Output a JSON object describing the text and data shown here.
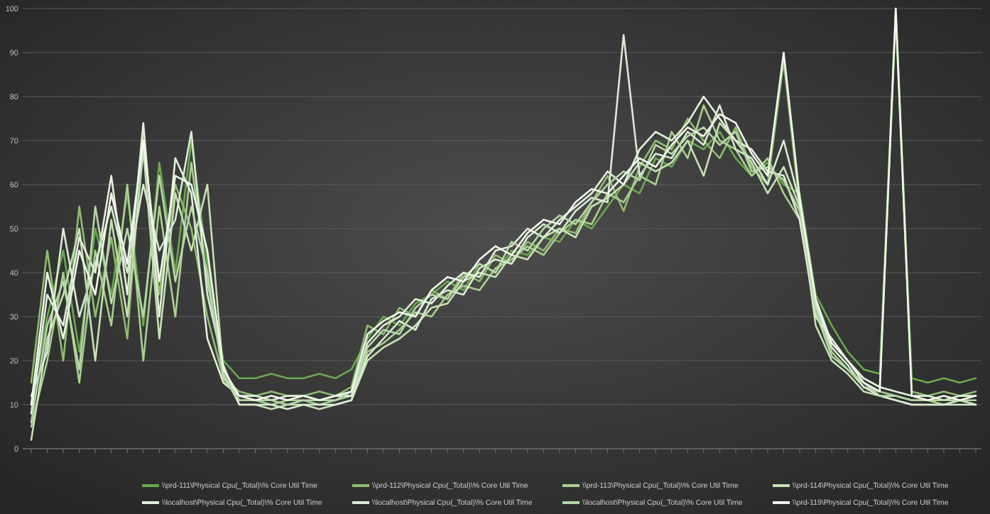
{
  "chart_data": {
    "type": "line",
    "categories": [
      null,
      null,
      null,
      null,
      null,
      null,
      null,
      null,
      null,
      null,
      null,
      null,
      null,
      null,
      null,
      null,
      null,
      null,
      null,
      null,
      null,
      null,
      null,
      null,
      null,
      null,
      null,
      null,
      null,
      null,
      null,
      null,
      null,
      null,
      null,
      null,
      null,
      null,
      null,
      null,
      null,
      null,
      null,
      null,
      null,
      null,
      null,
      null,
      null,
      null,
      null,
      null,
      null,
      null,
      null,
      null,
      null,
      null,
      null,
      null
    ],
    "ylim": [
      0,
      100
    ],
    "yticks": [
      0,
      10,
      20,
      30,
      40,
      50,
      60,
      70,
      80,
      90,
      100
    ],
    "grid": "y",
    "legend": "bottom",
    "line_style": "solid",
    "series": [
      {
        "name": "\\\\prd-111\\Physical Cpu(_Total)\\% Core Util Time",
        "color": "#6aa84f",
        "values": [
          10,
          30,
          45,
          22,
          50,
          35,
          58,
          28,
          65,
          40,
          70,
          42,
          20,
          16,
          16,
          17,
          16,
          16,
          17,
          16,
          18,
          25,
          30,
          28,
          33,
          35,
          38,
          36,
          42,
          40,
          45,
          44,
          48,
          47,
          52,
          50,
          55,
          60,
          58,
          66,
          64,
          70,
          68,
          72,
          66,
          62,
          65,
          60,
          58,
          35,
          28,
          22,
          18,
          17,
          100,
          16,
          15,
          16,
          15,
          16
        ]
      },
      {
        "name": "\\\\prd-112\\Physical Cpu(_Total)\\% Core Util Time",
        "color": "#8fbc6e",
        "values": [
          15,
          45,
          20,
          55,
          30,
          48,
          25,
          72,
          35,
          60,
          50,
          30,
          16,
          13,
          12,
          13,
          12,
          12,
          13,
          12,
          14,
          28,
          26,
          32,
          30,
          36,
          34,
          40,
          38,
          44,
          42,
          47,
          45,
          50,
          49,
          56,
          62,
          54,
          64,
          70,
          68,
          75,
          70,
          66,
          73,
          64,
          60,
          88,
          55,
          30,
          24,
          20,
          16,
          14,
          98,
          13,
          12,
          13,
          12,
          13
        ]
      },
      {
        "name": "\\\\prd-113\\Physical Cpu(_Total)\\% Core Util Time",
        "color": "#a9d08e",
        "values": [
          5,
          20,
          40,
          15,
          45,
          28,
          60,
          20,
          55,
          30,
          65,
          38,
          18,
          11,
          11,
          10,
          11,
          11,
          10,
          11,
          12,
          22,
          24,
          27,
          31,
          30,
          35,
          37,
          36,
          41,
          43,
          46,
          44,
          49,
          52,
          51,
          58,
          56,
          62,
          60,
          72,
          66,
          78,
          70,
          68,
          62,
          66,
          58,
          52,
          32,
          22,
          18,
          14,
          13,
          12,
          11,
          11,
          10,
          11,
          10
        ]
      },
      {
        "name": "\\\\prd-114\\Physical Cpu(_Total)\\% Core Util Time",
        "color": "#c6e0b4",
        "values": [
          2,
          25,
          35,
          50,
          20,
          52,
          30,
          68,
          25,
          58,
          45,
          60,
          17,
          10,
          10,
          9,
          10,
          10,
          9,
          10,
          11,
          20,
          23,
          25,
          28,
          32,
          33,
          38,
          40,
          39,
          44,
          43,
          48,
          50,
          48,
          55,
          57,
          60,
          65,
          63,
          65,
          70,
          62,
          74,
          70,
          65,
          58,
          64,
          55,
          28,
          20,
          17,
          13,
          12,
          11,
          10,
          10,
          10,
          11,
          10
        ]
      },
      {
        "name": "\\\\localhost\\Physical Cpu(_Total)\\% Core Util Time",
        "color": "#e2efda",
        "values": [
          8,
          35,
          28,
          48,
          40,
          62,
          35,
          74,
          30,
          66,
          58,
          25,
          15,
          12,
          12,
          11,
          12,
          12,
          11,
          12,
          12,
          24,
          28,
          30,
          34,
          33,
          37,
          40,
          39,
          45,
          46,
          50,
          48,
          52,
          55,
          58,
          63,
          60,
          68,
          72,
          70,
          74,
          80,
          75,
          70,
          68,
          63,
          62,
          52,
          30,
          25,
          20,
          16,
          14,
          13,
          12,
          12,
          11,
          12,
          12
        ]
      },
      {
        "name": "\\\\localhost\\Physical Cpu(_Total)\\% Core Util Time",
        "color": "#d9ead3",
        "values": [
          12,
          22,
          50,
          30,
          42,
          55,
          40,
          60,
          45,
          52,
          72,
          35,
          19,
          10,
          10,
          10,
          9,
          10,
          10,
          10,
          11,
          21,
          25,
          29,
          27,
          34,
          36,
          35,
          41,
          43,
          42,
          48,
          51,
          49,
          54,
          57,
          56,
          94,
          62,
          67,
          66,
          72,
          69,
          78,
          68,
          66,
          60,
          70,
          56,
          33,
          23,
          19,
          14,
          12,
          11,
          10,
          10,
          10,
          10,
          10
        ]
      },
      {
        "name": "\\\\localhost\\Physical Cpu(_Total)\\% Core Util Time",
        "color": "#b6d7a8",
        "values": [
          6,
          28,
          38,
          18,
          55,
          33,
          50,
          30,
          62,
          38,
          55,
          40,
          16,
          11,
          11,
          11,
          10,
          11,
          11,
          11,
          13,
          23,
          27,
          26,
          32,
          35,
          34,
          39,
          42,
          40,
          47,
          45,
          50,
          53,
          51,
          56,
          60,
          63,
          61,
          69,
          67,
          71,
          73,
          69,
          72,
          63,
          64,
          61,
          54,
          31,
          21,
          18,
          15,
          12,
          12,
          11,
          11,
          11,
          11,
          11
        ]
      },
      {
        "name": "\\\\prd-119\\Physical Cpu(_Total)\\% Core Util Time",
        "color": "#f0f7ec",
        "values": [
          10,
          40,
          25,
          45,
          35,
          58,
          42,
          70,
          38,
          62,
          60,
          45,
          18,
          12,
          11,
          12,
          11,
          12,
          11,
          12,
          13,
          26,
          29,
          31,
          30,
          36,
          39,
          38,
          43,
          46,
          44,
          49,
          52,
          51,
          56,
          59,
          58,
          62,
          66,
          64,
          69,
          73,
          71,
          76,
          74,
          67,
          62,
          90,
          57,
          34,
          24,
          20,
          15,
          13,
          100,
          12,
          11,
          12,
          11,
          12
        ]
      }
    ]
  }
}
